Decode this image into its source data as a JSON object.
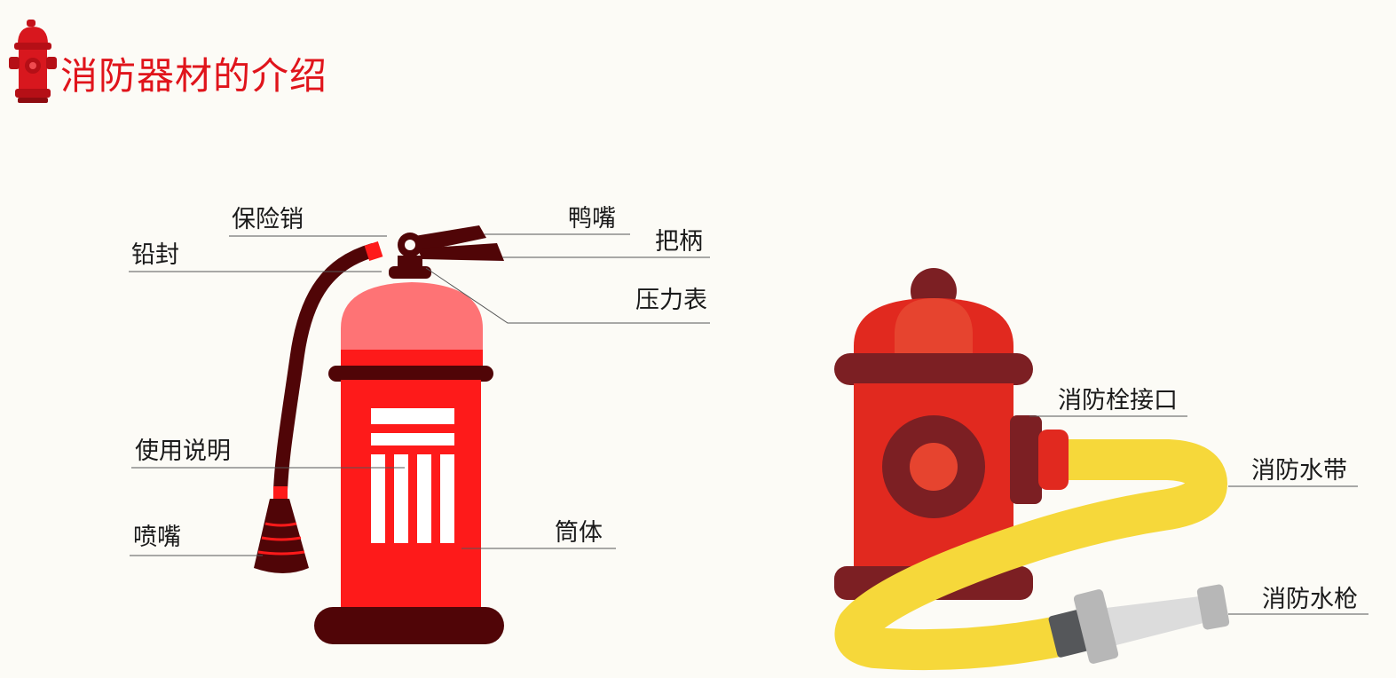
{
  "title": "消防器材的介绍",
  "extinguisher_labels": {
    "safety_pin": "保险销",
    "lead_seal": "铅封",
    "duck_beak": "鸭嘴",
    "handle": "把柄",
    "pressure_gauge": "压力表",
    "instructions": "使用说明",
    "nozzle": "喷嘴",
    "cylinder": "筒体"
  },
  "hydrant_labels": {
    "hydrant_interface": "消防栓接口",
    "fire_hose": "消防水带",
    "fire_nozzle": "消防水枪"
  },
  "colors": {
    "brand_red": "#e0141b",
    "extinguisher_red": "#fe1a1a",
    "dark_maroon": "#500507",
    "dome_pink": "#fe7375",
    "hydrant_red": "#e1291f",
    "hydrant_dark": "#7c1f23",
    "hose_yellow": "#f6d83a"
  }
}
